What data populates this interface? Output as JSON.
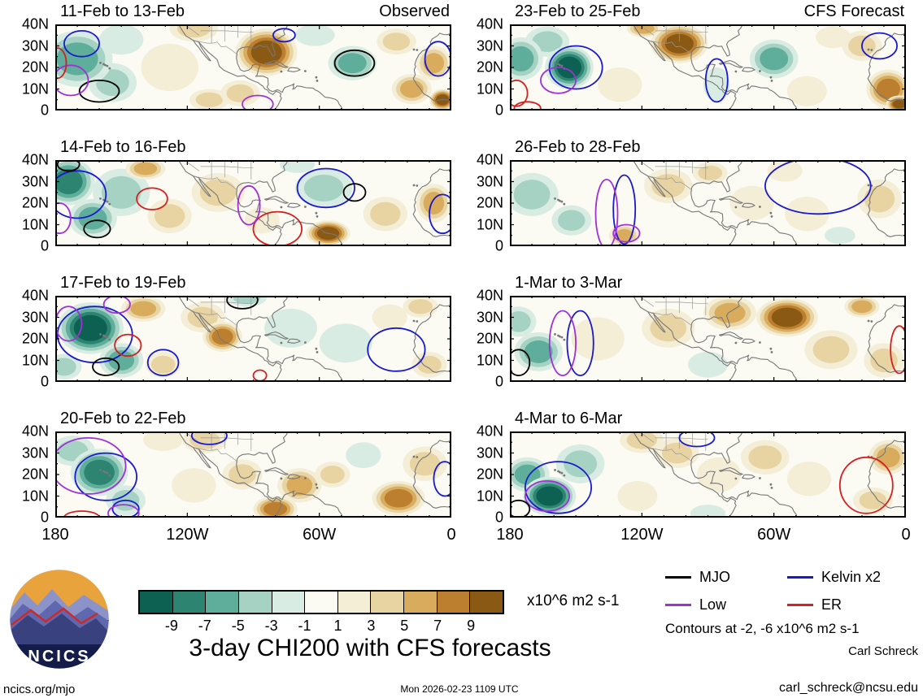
{
  "axes": {
    "y_ticks": [
      "40N",
      "30N",
      "20N",
      "10N",
      "0"
    ],
    "x_ticks": [
      "180",
      "120W",
      "60W",
      "0"
    ]
  },
  "logo": {
    "text": "NCICS"
  },
  "credits": {
    "author": "Carl Schreck",
    "email": "carl_schreck@ncsu.edu",
    "site": "ncics.org/mjo",
    "timestamp": "Mon 2026-02-23 1109 UTC"
  },
  "chart_data": {
    "type": "heatmap",
    "title": "3-day CHI200 with CFS forecasts",
    "units": "x10^6 m2 s-1",
    "lon_range": [
      -180,
      0
    ],
    "lat_range": [
      0,
      40
    ],
    "shaded_levels": [
      -9,
      -7,
      -5,
      -3,
      -1,
      1,
      3,
      5,
      7,
      9
    ],
    "overlay_contour_levels": [
      -2,
      -6
    ],
    "colors": {
      "background": "#fbfaf3"
    },
    "shading_palette": {
      "-9": "#0d6152",
      "-7": "#2c8471",
      "-5": "#5fae9b",
      "-3": "#a6d2c3",
      "-1": "#d9ece3",
      "1": "#f4eed7",
      "3": "#e8d3a2",
      "5": "#d8ac5c",
      "7": "#bc7f2f",
      "9": "#8a5a15"
    },
    "contour_colors": {
      "MJO": "#000000",
      "Kelvin": "#1919cd",
      "Low": "#a030d8",
      "ER": "#d42020"
    },
    "colorbar": {
      "tick_labels": [
        "-9",
        "-7",
        "-5",
        "-3",
        "-1",
        "1",
        "3",
        "5",
        "7",
        "9"
      ],
      "colors": [
        "#0d6152",
        "#2c8471",
        "#5fae9b",
        "#a6d2c3",
        "#d9ece3",
        "#fbfaf3",
        "#f4eed7",
        "#e8d3a2",
        "#d8ac5c",
        "#bc7f2f",
        "#8a5a15"
      ],
      "units": "x10^6 m2 s-1"
    },
    "legend": {
      "items": [
        {
          "label": "MJO",
          "color": "#000000"
        },
        {
          "label": "Kelvin x2",
          "color": "#1919cd"
        },
        {
          "label": "Low",
          "color": "#a030d8"
        },
        {
          "label": "ER",
          "color": "#d42020"
        }
      ],
      "note": "Contours at -2, -6 x10^6 m2 s-1"
    },
    "columns": [
      {
        "header": "Observed"
      },
      {
        "header": "CFS Forecast"
      }
    ],
    "shaded_center_format": [
      "lon",
      "lat",
      "radius_lon_deg",
      "radius_lat_deg",
      "peak_value"
    ],
    "contour_ellipse_format": [
      "wave_type",
      "lon",
      "lat",
      "radius_lon_deg",
      "radius_lat_deg"
    ],
    "panels": [
      {
        "title": "11-Feb to 13-Feb",
        "column": "Observed",
        "shaded_centers": [
          [
            -170,
            24,
            16,
            13,
            -5
          ],
          [
            -154,
            13,
            11,
            9,
            -3
          ],
          [
            -150,
            33,
            10,
            7,
            -1
          ],
          [
            -128,
            20,
            13,
            11,
            1
          ],
          [
            -117,
            38,
            11,
            6,
            3
          ],
          [
            -110,
            5,
            9,
            5,
            3
          ],
          [
            -96,
            8,
            9,
            6,
            3
          ],
          [
            -84,
            27,
            14,
            11,
            9
          ],
          [
            -62,
            35,
            9,
            5,
            -1
          ],
          [
            -45,
            22,
            11,
            8,
            -5
          ],
          [
            -25,
            32,
            9,
            6,
            3
          ],
          [
            -18,
            10,
            9,
            7,
            5
          ],
          [
            -8,
            22,
            8,
            8,
            5
          ],
          [
            -4,
            5,
            6,
            5,
            9
          ]
        ],
        "contour_ellipses": [
          [
            "MJO",
            -160,
            9,
            9,
            5
          ],
          [
            "MJO",
            -44,
            22,
            9,
            6
          ],
          [
            "Kelvin",
            -168,
            31,
            8,
            6
          ],
          [
            "Kelvin",
            -76,
            35,
            5,
            3
          ],
          [
            "Kelvin",
            -6,
            24,
            6,
            8
          ],
          [
            "Low",
            -173,
            14,
            8,
            7
          ],
          [
            "Low",
            -88,
            3,
            7,
            4
          ],
          [
            "ER",
            -179,
            22,
            4,
            7
          ]
        ]
      },
      {
        "title": "14-Feb to 16-Feb",
        "column": "Observed",
        "shaded_centers": [
          [
            -174,
            30,
            12,
            11,
            -7
          ],
          [
            -163,
            13,
            11,
            9,
            -5
          ],
          [
            -150,
            25,
            13,
            11,
            -3
          ],
          [
            -139,
            36,
            9,
            5,
            5
          ],
          [
            -128,
            14,
            10,
            8,
            3
          ],
          [
            -106,
            25,
            12,
            9,
            3
          ],
          [
            -86,
            12,
            8,
            6,
            1
          ],
          [
            -70,
            38,
            8,
            4,
            -1
          ],
          [
            -58,
            27,
            13,
            9,
            -3
          ],
          [
            -56,
            6,
            10,
            6,
            9
          ],
          [
            -30,
            15,
            10,
            8,
            3
          ],
          [
            -8,
            20,
            8,
            9,
            5
          ]
        ],
        "contour_ellipses": [
          [
            "Kelvin",
            -170,
            24,
            13,
            11
          ],
          [
            "Kelvin",
            -57,
            27,
            13,
            9
          ],
          [
            "Kelvin",
            -4,
            15,
            6,
            9
          ],
          [
            "MJO",
            -174,
            38,
            5,
            3
          ],
          [
            "MJO",
            -161,
            8,
            6,
            4
          ],
          [
            "MJO",
            -44,
            25,
            5,
            4
          ],
          [
            "ER",
            -136,
            22,
            7,
            5
          ],
          [
            "ER",
            -79,
            8,
            11,
            8
          ],
          [
            "Low",
            -92,
            19,
            5,
            9
          ],
          [
            "Low",
            -178,
            13,
            5,
            7
          ]
        ]
      },
      {
        "title": "17-Feb to 19-Feb",
        "column": "Observed",
        "shaded_centers": [
          [
            -164,
            25,
            15,
            12,
            -9
          ],
          [
            -150,
            10,
            10,
            8,
            -5
          ],
          [
            -176,
            7,
            8,
            6,
            -3
          ],
          [
            -140,
            34,
            10,
            6,
            5
          ],
          [
            -131,
            8,
            8,
            6,
            3
          ],
          [
            -113,
            30,
            10,
            7,
            3
          ],
          [
            -104,
            21,
            9,
            7,
            7
          ],
          [
            -93,
            39,
            9,
            4,
            -3
          ],
          [
            -73,
            25,
            12,
            9,
            -1
          ],
          [
            -48,
            18,
            12,
            9,
            -1
          ],
          [
            -28,
            30,
            8,
            6,
            1
          ],
          [
            -14,
            35,
            8,
            5,
            3
          ],
          [
            -10,
            8,
            8,
            6,
            3
          ]
        ],
        "contour_ellipses": [
          [
            "Kelvin",
            -162,
            22,
            17,
            13
          ],
          [
            "Kelvin",
            -131,
            9,
            7,
            6
          ],
          [
            "Kelvin",
            -25,
            15,
            13,
            10
          ],
          [
            "ER",
            -147,
            17,
            6,
            5
          ],
          [
            "ER",
            -87,
            3,
            3,
            2.5
          ],
          [
            "MJO",
            -157,
            7,
            6,
            4
          ],
          [
            "MJO",
            -95,
            38,
            7,
            4
          ],
          [
            "Low",
            -174,
            27,
            6,
            8
          ],
          [
            "Low",
            -152,
            36,
            6,
            4
          ]
        ]
      },
      {
        "title": "20-Feb to 22-Feb",
        "column": "Observed",
        "shaded_centers": [
          [
            -160,
            21,
            13,
            11,
            -7
          ],
          [
            -172,
            31,
            10,
            7,
            -3
          ],
          [
            -148,
            8,
            9,
            7,
            -3
          ],
          [
            -131,
            36,
            9,
            5,
            1
          ],
          [
            -112,
            36,
            10,
            6,
            3
          ],
          [
            -117,
            15,
            10,
            8,
            1
          ],
          [
            -95,
            20,
            9,
            7,
            3
          ],
          [
            -80,
            4,
            10,
            6,
            7
          ],
          [
            -69,
            15,
            10,
            8,
            5
          ],
          [
            -40,
            29,
            8,
            6,
            -1
          ],
          [
            -24,
            9,
            12,
            8,
            7
          ],
          [
            -12,
            25,
            10,
            8,
            3
          ],
          [
            -54,
            20,
            8,
            6,
            3
          ]
        ],
        "contour_ellipses": [
          [
            "Kelvin",
            -157,
            19,
            14,
            11
          ],
          [
            "Kelvin",
            -148,
            4,
            6,
            4
          ],
          [
            "Kelvin",
            -110,
            38,
            8,
            4
          ],
          [
            "Kelvin",
            -3,
            18,
            5,
            8
          ],
          [
            "Low",
            -165,
            24,
            17,
            13
          ],
          [
            "Low",
            -149,
            2,
            7,
            4
          ],
          [
            "ER",
            -168,
            0,
            8,
            3
          ]
        ]
      },
      {
        "title": "23-Feb to 25-Feb",
        "column": "CFS Forecast",
        "shaded_centers": [
          [
            -175,
            24,
            10,
            10,
            -5
          ],
          [
            -163,
            32,
            10,
            7,
            -3
          ],
          [
            -153,
            20,
            11,
            10,
            -9
          ],
          [
            -130,
            12,
            10,
            8,
            1
          ],
          [
            -119,
            38,
            8,
            4,
            5
          ],
          [
            -103,
            31,
            13,
            9,
            9
          ],
          [
            -86,
            12,
            6,
            8,
            -1
          ],
          [
            -60,
            24,
            11,
            9,
            -5
          ],
          [
            -45,
            9,
            9,
            7,
            1
          ],
          [
            -33,
            34,
            8,
            5,
            1
          ],
          [
            -20,
            30,
            9,
            7,
            3
          ],
          [
            -8,
            10,
            10,
            9,
            7
          ],
          [
            -3,
            3,
            6,
            4,
            9
          ]
        ],
        "contour_ellipses": [
          [
            "Kelvin",
            -150,
            20,
            12,
            10
          ],
          [
            "Kelvin",
            -86,
            14,
            5,
            10
          ],
          [
            "Kelvin",
            -12,
            30,
            8,
            6
          ],
          [
            "Low",
            -158,
            14,
            8,
            6
          ],
          [
            "ER",
            -177,
            8,
            5,
            6
          ],
          [
            "ER",
            -172,
            1,
            6,
            3
          ]
        ]
      },
      {
        "title": "26-Feb to 28-Feb",
        "column": "CFS Forecast",
        "shaded_centers": [
          [
            -170,
            24,
            12,
            10,
            -3
          ],
          [
            -152,
            12,
            9,
            7,
            -3
          ],
          [
            -128,
            5,
            7,
            5,
            5
          ],
          [
            -108,
            28,
            11,
            8,
            3
          ],
          [
            -89,
            34,
            8,
            5,
            3
          ],
          [
            -70,
            20,
            10,
            8,
            1
          ],
          [
            -45,
            15,
            10,
            8,
            1
          ],
          [
            -30,
            5,
            7,
            4,
            -1
          ],
          [
            -55,
            35,
            8,
            5,
            1
          ],
          [
            -12,
            22,
            10,
            9,
            3
          ]
        ],
        "contour_ellipses": [
          [
            "Kelvin",
            -128,
            17,
            5,
            16
          ],
          [
            "Low",
            -136,
            15,
            5,
            16
          ],
          [
            "Kelvin",
            -40,
            28,
            24,
            13
          ],
          [
            "Low",
            -127,
            6,
            6,
            4
          ]
        ]
      },
      {
        "title": "1-Mar to 3-Mar",
        "column": "CFS Forecast",
        "shaded_centers": [
          [
            -167,
            14,
            11,
            9,
            -5
          ],
          [
            -176,
            28,
            8,
            7,
            -3
          ],
          [
            -140,
            20,
            12,
            10,
            1
          ],
          [
            -108,
            25,
            12,
            9,
            3
          ],
          [
            -80,
            32,
            12,
            8,
            5
          ],
          [
            -54,
            30,
            14,
            9,
            9
          ],
          [
            -34,
            15,
            12,
            9,
            3
          ],
          [
            -90,
            8,
            9,
            6,
            -1
          ],
          [
            -10,
            10,
            9,
            8,
            3
          ],
          [
            -20,
            35,
            8,
            5,
            5
          ]
        ],
        "contour_ellipses": [
          [
            "Kelvin",
            -148,
            18,
            6,
            15
          ],
          [
            "Low",
            -156,
            18,
            6,
            15
          ],
          [
            "MJO",
            -176,
            9,
            5,
            6
          ],
          [
            "ER",
            -3,
            15,
            4,
            11
          ]
        ]
      },
      {
        "title": "4-Mar to 6-Mar",
        "column": "CFS Forecast",
        "shaded_centers": [
          [
            -162,
            10,
            12,
            9,
            -9
          ],
          [
            -172,
            20,
            10,
            8,
            -5
          ],
          [
            -148,
            25,
            11,
            9,
            -3
          ],
          [
            -120,
            36,
            10,
            6,
            3
          ],
          [
            -104,
            30,
            10,
            7,
            3
          ],
          [
            -122,
            10,
            9,
            7,
            1
          ],
          [
            -85,
            20,
            10,
            8,
            1
          ],
          [
            -64,
            28,
            11,
            8,
            3
          ],
          [
            -44,
            18,
            10,
            8,
            1
          ],
          [
            -8,
            28,
            9,
            8,
            5
          ],
          [
            -15,
            8,
            9,
            6,
            3
          ],
          [
            -90,
            2,
            8,
            4,
            -1
          ]
        ],
        "contour_ellipses": [
          [
            "Kelvin",
            -158,
            14,
            15,
            12
          ],
          [
            "Low",
            -163,
            10,
            10,
            7
          ],
          [
            "MJO",
            -176,
            4,
            5,
            4
          ],
          [
            "ER",
            -18,
            15,
            12,
            13
          ],
          [
            "Kelvin",
            -95,
            37,
            8,
            4
          ]
        ]
      }
    ]
  }
}
